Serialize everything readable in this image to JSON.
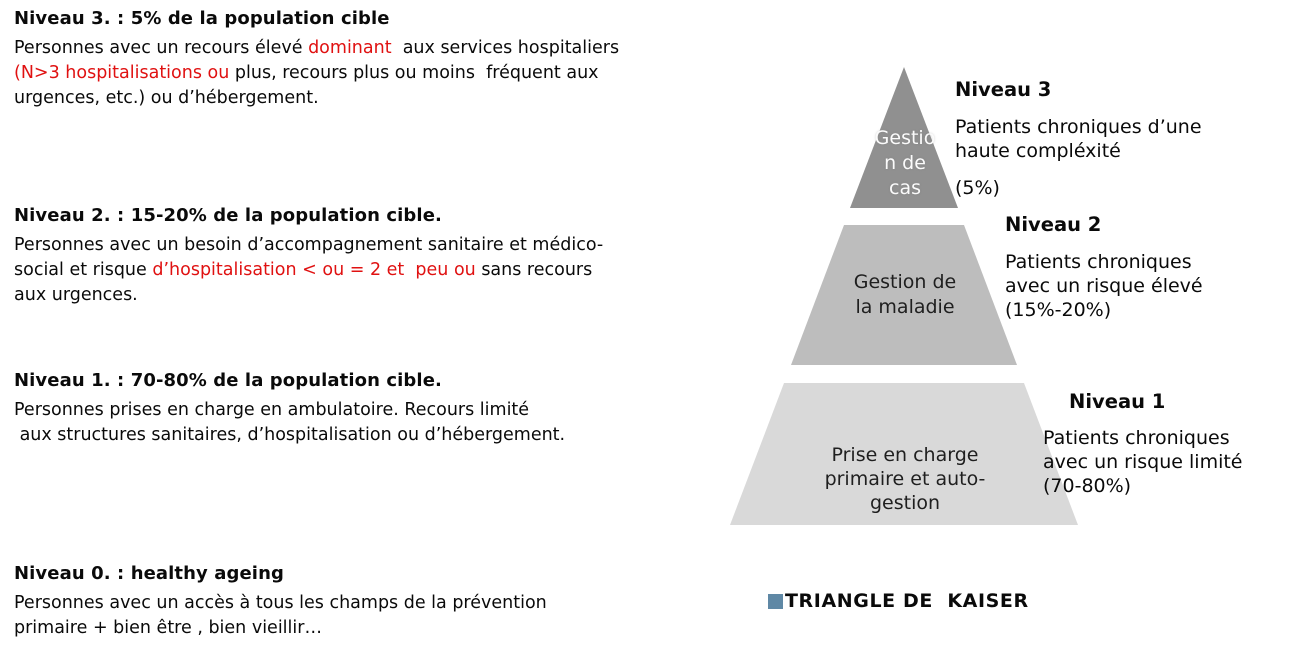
{
  "colors": {
    "red": "#e01111",
    "level3": "#909090",
    "level2": "#bdbdbd",
    "level1": "#d9d9d9",
    "kaiser-bullet": "#5f88a5"
  },
  "left_blocks": [
    {
      "id": "niveau3",
      "heading": "Niveau 3. : 5% de la population cible",
      "lines": [
        {
          "segs": [
            {
              "t": "Personnes avec un recours élevé ",
              "red": false
            },
            {
              "t": "dominant",
              "red": true
            },
            {
              "t": "  aux services hospitaliers",
              "red": false
            }
          ]
        },
        {
          "segs": [
            {
              "t": "(N>3 hospitalisations ou ",
              "red": true
            },
            {
              "t": "plus, recours plus ou moins  fréquent aux",
              "red": false
            }
          ]
        },
        {
          "segs": [
            {
              "t": "urgences, etc.) ou d’hébergement.",
              "red": false
            }
          ]
        }
      ]
    },
    {
      "id": "niveau2",
      "heading": "Niveau 2. : 15-20% de la population cible.",
      "lines": [
        {
          "segs": [
            {
              "t": "Personnes avec un besoin d’accompagnement sanitaire et médico-",
              "red": false
            }
          ]
        },
        {
          "segs": [
            {
              "t": "social et risque ",
              "red": false
            },
            {
              "t": "d’hospitalisation < ou = 2 et  peu ou ",
              "red": true
            },
            {
              "t": "sans recours",
              "red": false
            }
          ]
        },
        {
          "segs": [
            {
              "t": "aux urgences.",
              "red": false
            }
          ]
        }
      ]
    },
    {
      "id": "niveau1",
      "heading": "Niveau 1. : 70-80% de la population cible.",
      "lines": [
        {
          "segs": [
            {
              "t": "Personnes prises en charge en ambulatoire. Recours limité",
              "red": false
            }
          ]
        },
        {
          "segs": [
            {
              "t": " aux structures sanitaires, d’hospitalisation ou d’hébergement.",
              "red": false
            }
          ]
        }
      ]
    },
    {
      "id": "niveau0",
      "heading": "Niveau 0. : healthy ageing",
      "lines": [
        {
          "segs": [
            {
              "t": "Personnes avec un accès à tous les champs de la prévention",
              "red": false
            }
          ]
        },
        {
          "segs": [
            {
              "t": "primaire + bien être , bien vieillir…",
              "red": false
            }
          ]
        }
      ]
    }
  ],
  "pyramid": {
    "level3": {
      "shape_lines": [
        "Gestio",
        "n de",
        "cas"
      ],
      "label_heading": "Niveau 3",
      "label_lines": [
        "Patients chroniques d’une",
        "haute compléxité"
      ],
      "pct": "(5%)"
    },
    "level2": {
      "shape_lines": [
        "Gestion de",
        "la maladie"
      ],
      "label_heading": "Niveau 2",
      "label_lines": [
        "Patients chroniques",
        "avec un risque élevé",
        "(15%-20%)"
      ]
    },
    "level1": {
      "shape_lines": [
        "Prise en charge",
        "primaire et auto-",
        "gestion"
      ],
      "label_heading": "Niveau 1",
      "label_lines": [
        "Patients chroniques",
        "avec un risque limité",
        "(70-80%)"
      ]
    }
  },
  "legend": {
    "title": "TRIANGLE DE  KAISER"
  }
}
